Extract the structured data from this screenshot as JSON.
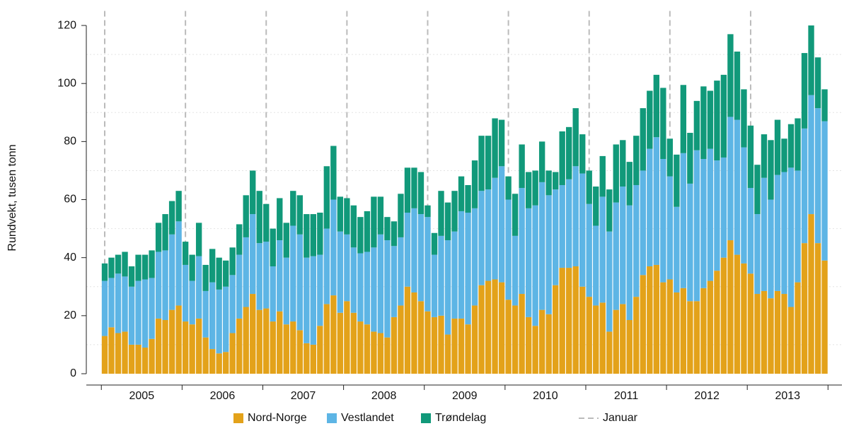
{
  "chart_data": {
    "type": "stacked_bar",
    "y_label": "Rundvekt, tusen tonn",
    "categories": [
      null,
      null,
      null,
      null,
      null,
      null,
      null,
      null,
      null,
      null,
      null,
      null,
      null,
      null,
      null,
      null,
      null,
      null,
      null,
      null,
      null,
      null,
      null,
      null,
      null,
      null,
      null,
      null,
      null,
      null,
      null,
      null,
      null,
      null,
      null,
      null,
      null,
      null,
      null,
      null,
      null,
      null,
      null,
      null,
      null,
      null,
      null,
      null,
      null,
      null,
      null,
      null,
      null,
      null,
      null,
      null,
      null,
      null,
      null,
      null,
      null,
      null,
      null,
      null,
      null,
      null,
      null,
      null,
      null,
      null,
      null,
      null,
      null,
      null,
      null,
      null,
      null,
      null,
      null,
      null,
      null,
      null,
      null,
      null,
      null,
      null,
      null,
      null,
      null,
      null,
      null,
      null,
      null,
      null,
      null,
      null,
      null,
      null,
      null,
      null,
      null,
      null,
      null,
      null,
      null,
      null,
      null,
      null
    ],
    "year_labels": [
      "2005",
      "2006",
      "2007",
      "2008",
      "2009",
      "2010",
      "2011",
      "2012",
      "2013"
    ],
    "series": [
      {
        "name": "Nord-Norge",
        "color": "#E3A21A",
        "values": [
          13,
          16,
          14,
          14.5,
          10,
          10,
          9,
          12,
          19,
          18.5,
          22,
          23.5,
          18,
          17,
          19,
          12.5,
          8.5,
          7,
          7.5,
          14,
          19,
          23,
          27.5,
          22,
          22.5,
          18,
          21.5,
          17,
          18,
          15,
          10.5,
          10,
          16.5,
          24,
          27,
          21,
          25,
          21,
          18,
          17,
          14.5,
          14,
          12.5,
          19.5,
          23.5,
          30,
          28,
          25,
          21.5,
          19.5,
          20,
          13.5,
          19,
          19,
          17,
          23.5,
          30.5,
          32,
          32.5,
          31.5,
          25.5,
          23.5,
          27.5,
          19.5,
          16.5,
          22,
          20.5,
          30.5,
          36.5,
          36.5,
          37,
          30,
          26.5,
          23.5,
          24.5,
          14.5,
          22,
          24,
          18.5,
          26.5,
          34,
          37,
          37.5,
          31.5,
          32.5,
          28,
          29.5,
          25,
          25,
          29.5,
          32,
          35.5,
          40,
          46,
          41,
          38,
          34.5,
          27.5,
          28.5,
          26,
          28.5,
          27.5,
          23,
          31.5,
          45,
          55,
          45,
          39
        ]
      },
      {
        "name": "Vestlandet",
        "color": "#5DB5E5",
        "values": [
          19,
          17,
          20.5,
          19,
          20,
          22,
          23.5,
          21,
          23,
          24,
          26,
          29,
          19.5,
          15,
          21.5,
          16,
          23,
          22,
          22.5,
          20,
          22,
          24,
          27.5,
          23,
          23,
          19,
          24.5,
          23,
          33,
          33,
          29.5,
          30.5,
          24.5,
          26,
          33,
          28,
          23,
          22.5,
          23.5,
          25,
          29,
          34,
          33.5,
          24.5,
          23.5,
          25.5,
          29,
          30,
          32.5,
          21.5,
          27.5,
          32.5,
          30,
          37,
          38.5,
          33.5,
          32.5,
          31.5,
          35,
          40,
          34.5,
          24,
          36.5,
          37.5,
          41.5,
          44,
          41,
          33,
          28.5,
          30.5,
          34.5,
          39,
          32,
          27.5,
          36.5,
          34.5,
          37,
          40.5,
          39.5,
          38.5,
          36,
          40.5,
          44,
          42.5,
          35.5,
          29.5,
          46.5,
          40.5,
          52,
          44.5,
          45.5,
          38,
          34.5,
          42.5,
          46.5,
          40,
          29.5,
          27.5,
          39,
          34,
          40,
          42,
          48,
          38.5,
          39.5,
          41,
          46.5,
          48
        ]
      },
      {
        "name": "Trøndelag",
        "color": "#11997A",
        "values": [
          6,
          7,
          6.5,
          8.5,
          7,
          9,
          8.5,
          9.5,
          10,
          12.5,
          11.5,
          10.5,
          8,
          9,
          11.5,
          9,
          11.5,
          11,
          9,
          9.5,
          10.5,
          14.5,
          15,
          18,
          13,
          13,
          14.5,
          12,
          12,
          13.5,
          15,
          14.5,
          14.5,
          21.5,
          18.5,
          12,
          12.5,
          14.5,
          12.5,
          14,
          17.5,
          13,
          8,
          8.5,
          15,
          15.5,
          14,
          14.5,
          4,
          7.5,
          15.5,
          13,
          14,
          12,
          9.5,
          16.5,
          19,
          18.5,
          20.5,
          16,
          8,
          14.5,
          15,
          12.5,
          12,
          14,
          8.5,
          6,
          18.5,
          18,
          20,
          13.5,
          11.5,
          13.5,
          14,
          14.5,
          20,
          16,
          15,
          17,
          21.5,
          20,
          21.5,
          24.5,
          13,
          18,
          23.5,
          17.5,
          17,
          25,
          20,
          27.5,
          28.5,
          28.5,
          23.5,
          20,
          21.5,
          17,
          15,
          20.5,
          19,
          11.5,
          15,
          18,
          26,
          24,
          17.5,
          11
        ]
      }
    ],
    "reference_line": {
      "name": "Januar",
      "color": "#bbbbbb"
    },
    "ylim": [
      0,
      125
    ],
    "yticks": [
      0,
      20,
      40,
      60,
      80,
      100,
      120
    ],
    "minor_grid": [
      10,
      30,
      50,
      70,
      90,
      110
    ]
  }
}
